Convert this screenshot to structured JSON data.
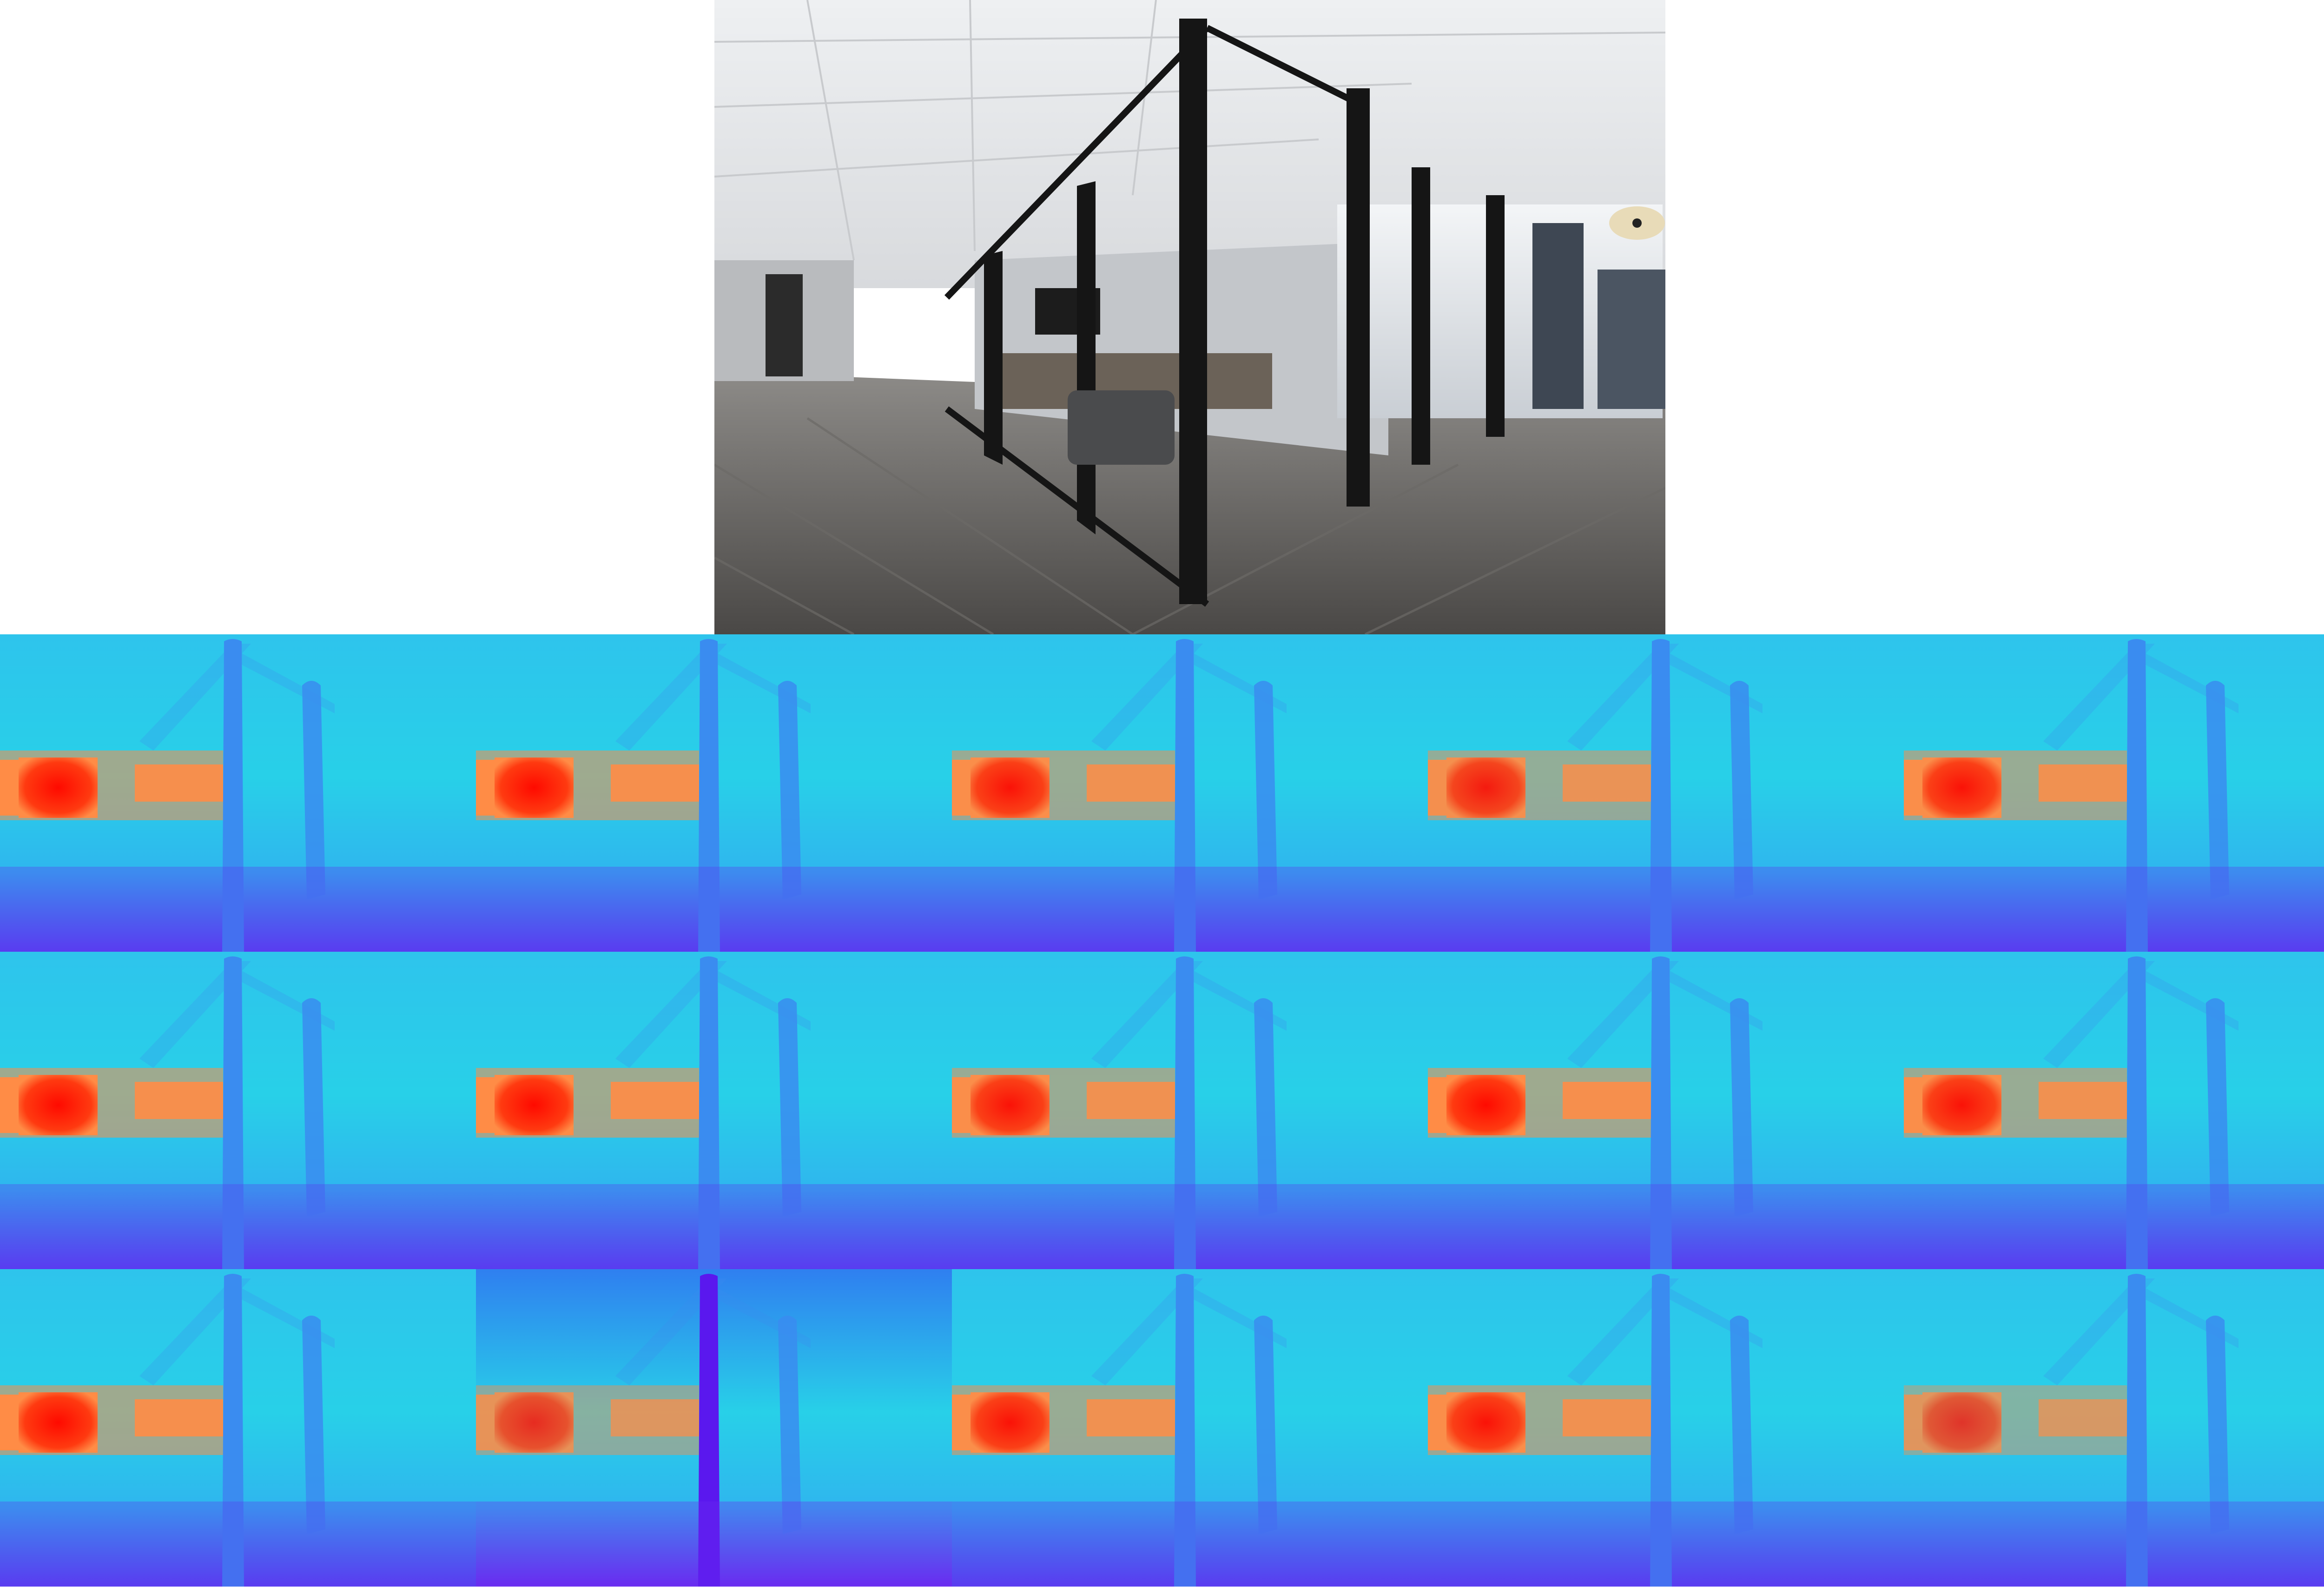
{
  "figure": {
    "source_photo": {
      "description_icon": "office-glass-meeting-room-photo"
    },
    "depth_grid": {
      "rows": 3,
      "cols": 5,
      "colormap": "rainbow",
      "colors": {
        "far": "#ff0a00",
        "mid_far": "#ff8c46",
        "mid": "#28d0e8",
        "near": "#3a8cf0",
        "nearest": "#5a3cf0"
      },
      "variants": [
        {
          "warmth": 1.0,
          "coolbias": 0.0
        },
        {
          "warmth": 1.0,
          "coolbias": 0.05
        },
        {
          "warmth": 0.95,
          "coolbias": 0.0
        },
        {
          "warmth": 0.9,
          "coolbias": 0.1
        },
        {
          "warmth": 0.95,
          "coolbias": 0.1
        },
        {
          "warmth": 1.0,
          "coolbias": 0.0
        },
        {
          "warmth": 1.0,
          "coolbias": 0.05
        },
        {
          "warmth": 0.95,
          "coolbias": 0.05
        },
        {
          "warmth": 1.0,
          "coolbias": 0.0
        },
        {
          "warmth": 0.95,
          "coolbias": 0.05
        },
        {
          "warmth": 1.0,
          "coolbias": 0.0
        },
        {
          "warmth": 0.8,
          "coolbias": 0.35
        },
        {
          "warmth": 0.95,
          "coolbias": 0.1
        },
        {
          "warmth": 0.95,
          "coolbias": 0.1
        },
        {
          "warmth": 0.75,
          "coolbias": 0.15
        }
      ]
    }
  }
}
